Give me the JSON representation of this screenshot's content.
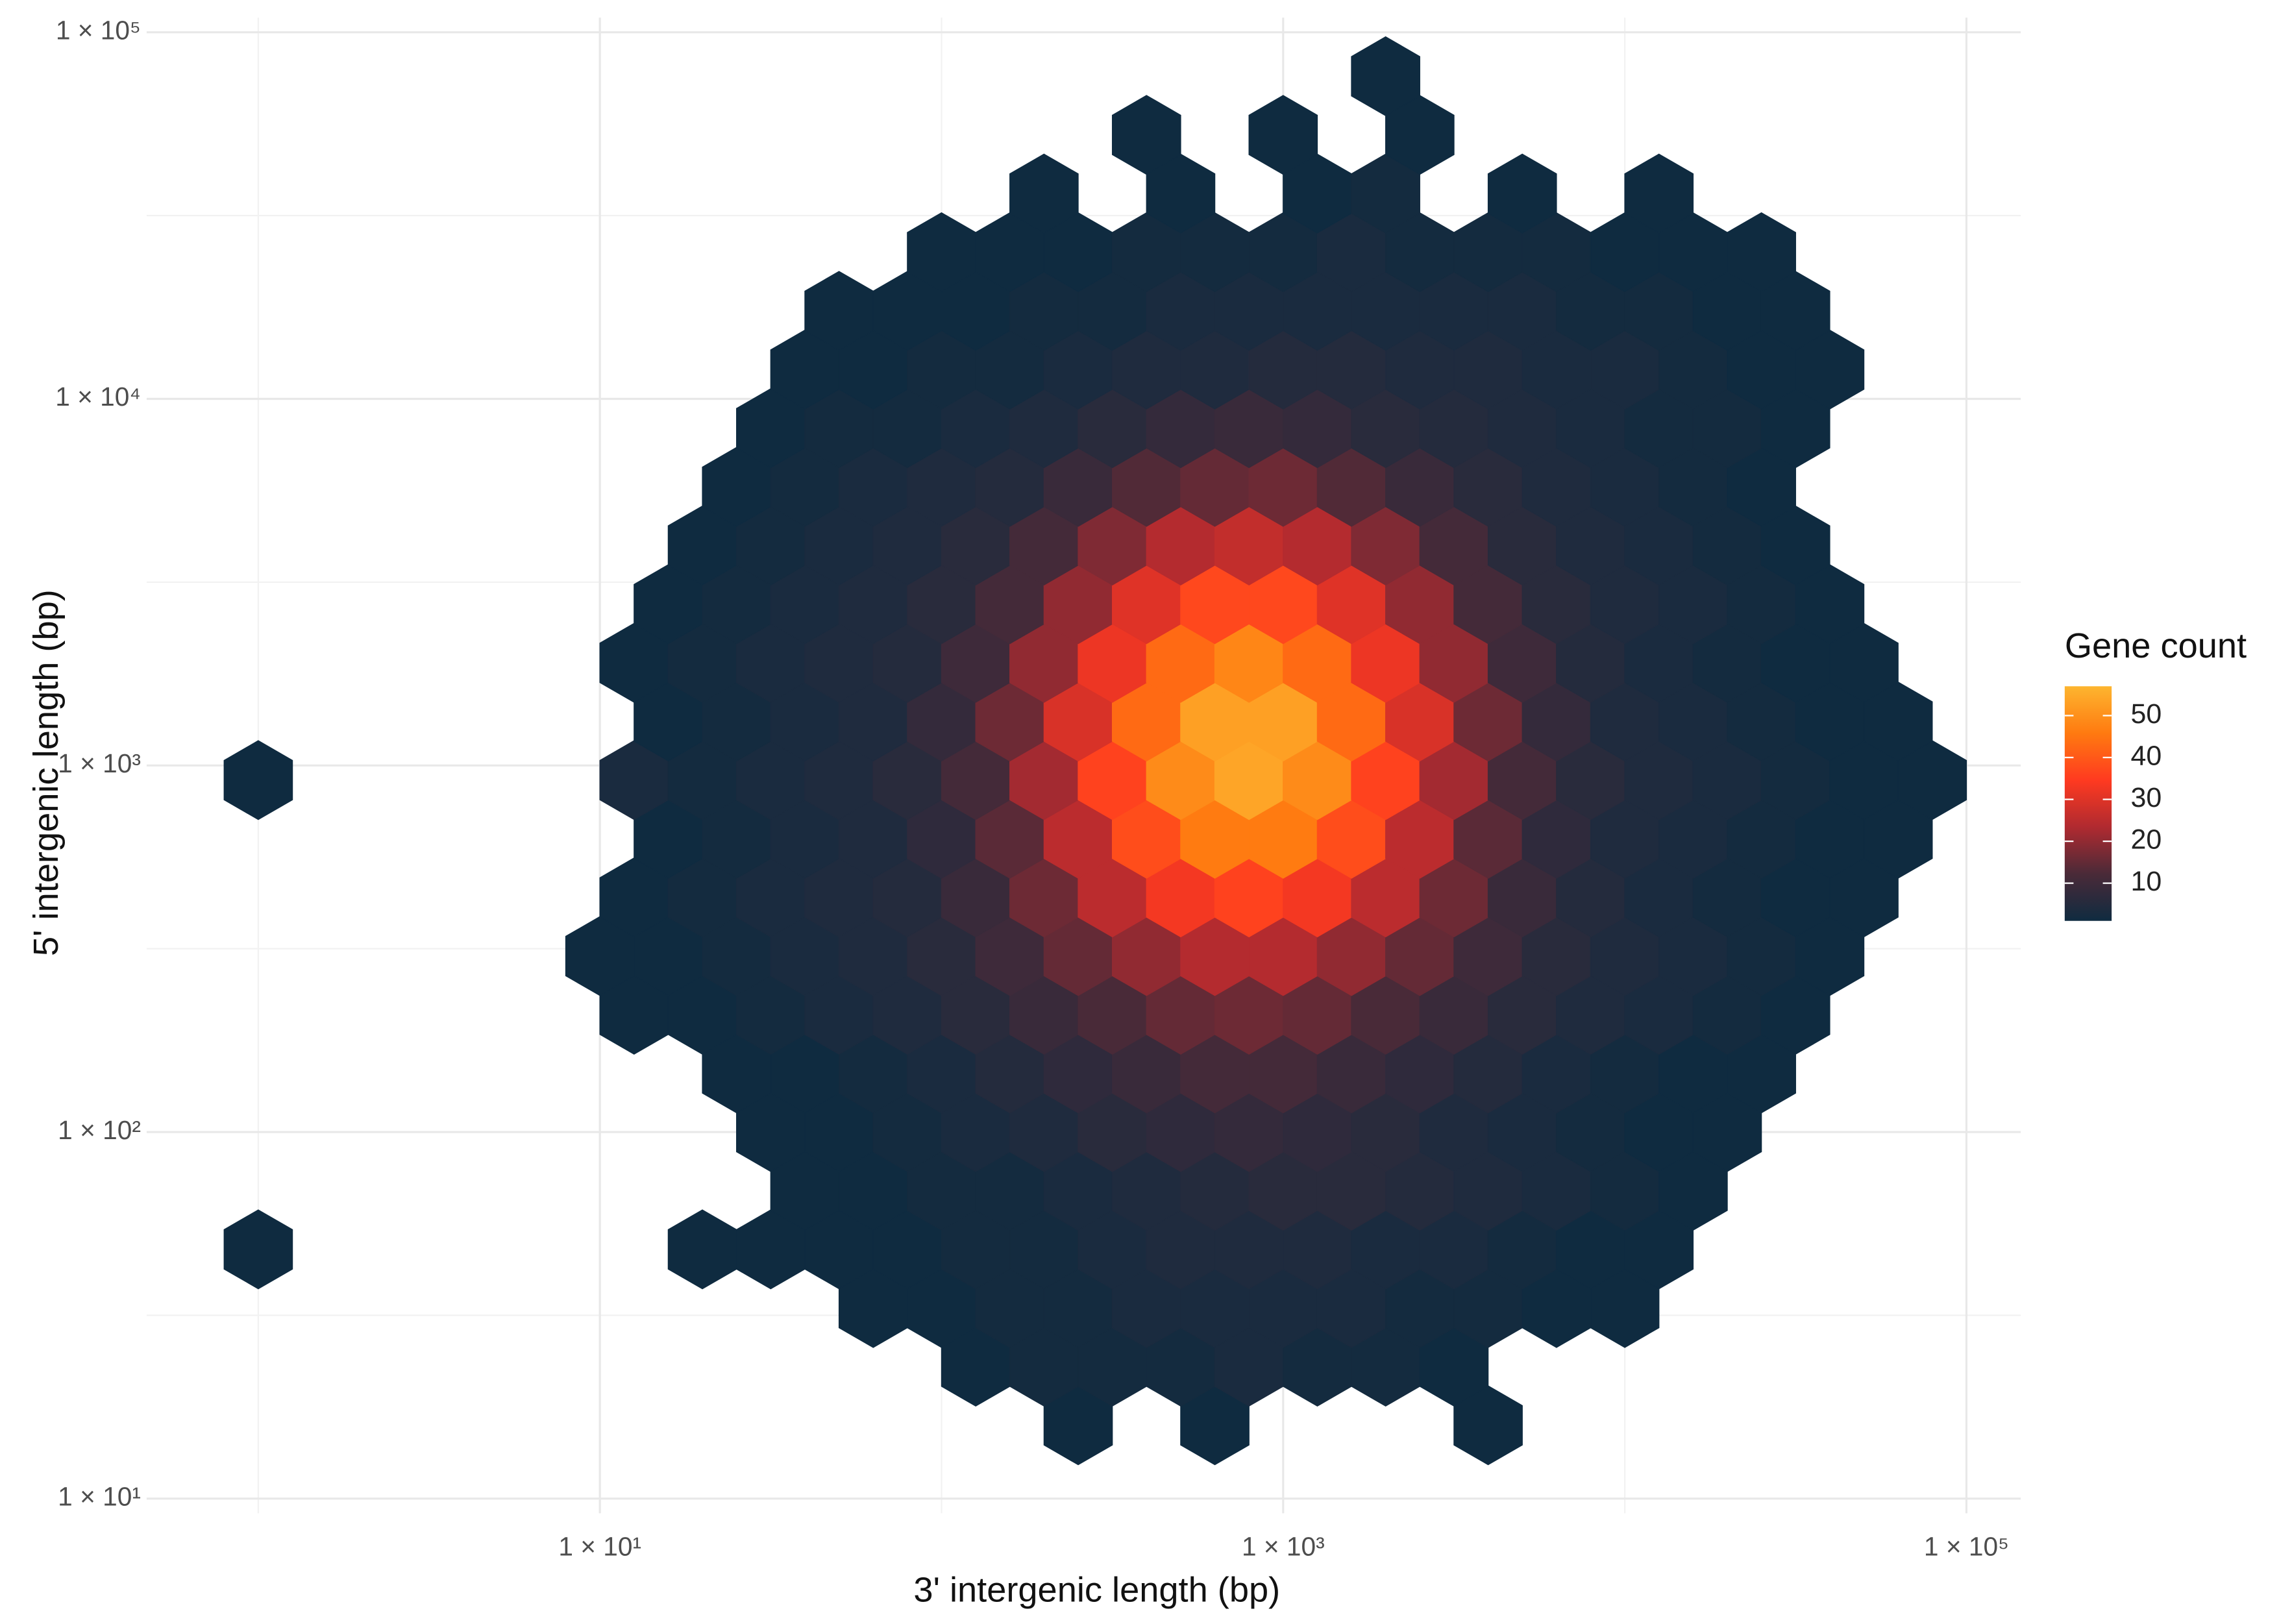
{
  "chart_data": {
    "type": "hexbin",
    "x_label": "3'  intergenic length (bp)",
    "y_label": "5' intergenic length (bp)",
    "log_x": true,
    "log_y": true,
    "grid": true,
    "xlim": [
      0.5,
      150000
    ],
    "ylim": [
      10,
      100000
    ],
    "xticks": [
      {
        "value": 10,
        "label": "1 × 10¹"
      },
      {
        "value": 1000,
        "label": "1 × 10³"
      },
      {
        "value": 100000,
        "label": "1 × 10⁵"
      }
    ],
    "yticks": [
      {
        "value": 10,
        "label": "1 × 10¹"
      },
      {
        "value": 100,
        "label": "1 × 10²"
      },
      {
        "value": 1000,
        "label": "1 × 10³"
      },
      {
        "value": 10000,
        "label": "1 × 10⁴"
      },
      {
        "value": 100000,
        "label": "1 × 10⁵"
      }
    ],
    "colorbar": {
      "title": "Gene count",
      "lim": [
        1,
        57
      ],
      "ticks": [
        10,
        20,
        30,
        40,
        50
      ],
      "colors": [
        "#0f2b40",
        "#4a2a38",
        "#b02a30",
        "#ff3a20",
        "#ff7a10",
        "#fdb52f"
      ]
    },
    "rows": [
      {
        "y": 15.85,
        "x": [
          251.2,
          631,
          3981
        ],
        "values": [
          1,
          1,
          1
        ]
      },
      {
        "y": 22.91,
        "x": [
          125.9,
          199.5,
          316.2,
          501.2,
          794.3,
          1259,
          1995,
          3162
        ],
        "values": [
          1,
          2,
          2,
          2,
          3,
          2,
          2,
          1
        ]
      },
      {
        "y": 33.11,
        "x": [
          63.1,
          100,
          158.5,
          251.2,
          398.1,
          631,
          1000,
          1585,
          2512,
          3981,
          6310,
          10000
        ],
        "values": [
          1,
          1,
          2,
          2,
          3,
          3,
          3,
          3,
          2,
          2,
          1,
          1
        ]
      },
      {
        "y": 47.86,
        "x": [
          1,
          19.95,
          31.62,
          50.12,
          79.43,
          125.9,
          199.5,
          316.2,
          501.2,
          794.3,
          1259,
          1995,
          3162,
          5012,
          7943,
          12590
        ],
        "values": [
          1,
          1,
          1,
          1,
          1,
          2,
          2,
          3,
          4,
          4,
          4,
          3,
          3,
          2,
          1,
          1
        ]
      },
      {
        "y": 69.18,
        "x": [
          39.81,
          63.1,
          100,
          158.5,
          251.2,
          398.1,
          631,
          1000,
          1585,
          2512,
          3981,
          6310,
          10000,
          15850
        ],
        "values": [
          1,
          1,
          2,
          2,
          3,
          4,
          5,
          6,
          6,
          5,
          4,
          3,
          2,
          1
        ]
      },
      {
        "y": 100,
        "x": [
          31.62,
          50.12,
          79.43,
          125.9,
          199.5,
          316.2,
          501.2,
          794.3,
          1259,
          1995,
          3162,
          5012,
          7943,
          12590,
          19950
        ],
        "values": [
          1,
          1,
          2,
          3,
          4,
          6,
          7,
          8,
          7,
          6,
          4,
          3,
          2,
          1,
          1
        ]
      },
      {
        "y": 144.5,
        "x": [
          25.12,
          39.81,
          63.1,
          100,
          158.5,
          251.2,
          398.1,
          631,
          1000,
          1585,
          2512,
          3981,
          6310,
          10000,
          15850,
          25120
        ],
        "values": [
          1,
          1,
          2,
          3,
          5,
          7,
          9,
          11,
          11,
          9,
          7,
          5,
          3,
          2,
          1,
          1
        ]
      },
      {
        "y": 208.9,
        "x": [
          12.59,
          19.95,
          31.62,
          50.12,
          79.43,
          125.9,
          199.5,
          316.2,
          501.2,
          794.3,
          1259,
          1995,
          3162,
          5012,
          7943,
          12590,
          19950,
          31620
        ],
        "values": [
          1,
          1,
          2,
          3,
          4,
          6,
          9,
          12,
          15,
          16,
          15,
          12,
          9,
          6,
          4,
          3,
          2,
          1
        ]
      },
      {
        "y": 302,
        "x": [
          10,
          15.85,
          25.12,
          39.81,
          63.1,
          100,
          158.5,
          251.2,
          398.1,
          631,
          1000,
          1585,
          2512,
          3981,
          6310,
          10000,
          15850,
          25120,
          39810
        ],
        "values": [
          1,
          1,
          2,
          3,
          4,
          6,
          10,
          15,
          20,
          24,
          24,
          20,
          15,
          10,
          6,
          4,
          3,
          2,
          1
        ]
      },
      {
        "y": 436.5,
        "x": [
          12.59,
          19.95,
          31.62,
          50.12,
          79.43,
          125.9,
          199.5,
          316.2,
          501.2,
          794.3,
          1259,
          1995,
          3162,
          5012,
          7943,
          12590,
          19950,
          31620,
          50120
        ],
        "values": [
          1,
          2,
          3,
          4,
          5,
          9,
          16,
          25,
          33,
          36,
          33,
          25,
          16,
          9,
          5,
          3,
          2,
          1,
          1
        ]
      },
      {
        "y": 631,
        "x": [
          15.85,
          25.12,
          39.81,
          63.1,
          100,
          158.5,
          251.2,
          398.1,
          631,
          1000,
          1585,
          2512,
          3981,
          6310,
          10000,
          15850,
          25120,
          39810,
          63100
        ],
        "values": [
          1,
          2,
          3,
          4,
          7,
          14,
          25,
          38,
          46,
          46,
          38,
          25,
          14,
          7,
          4,
          3,
          2,
          1,
          1
        ]
      },
      {
        "y": 912,
        "x": [
          1,
          12.59,
          19.95,
          31.62,
          50.12,
          79.43,
          125.9,
          199.5,
          316.2,
          501.2,
          794.3,
          1259,
          1995,
          3162,
          5012,
          7943,
          12590,
          19950,
          31620,
          50120,
          79430
        ],
        "values": [
          1,
          3,
          2,
          3,
          4,
          6,
          11,
          22,
          36,
          49,
          54,
          49,
          36,
          22,
          11,
          6,
          4,
          3,
          2,
          1,
          1
        ]
      },
      {
        "y": 1318,
        "x": [
          15.85,
          25.12,
          39.81,
          63.1,
          100,
          158.5,
          251.2,
          398.1,
          631,
          1000,
          1585,
          2512,
          3981,
          6310,
          10000,
          15850,
          25120,
          39810,
          63100
        ],
        "values": [
          1,
          2,
          3,
          4,
          8,
          16,
          29,
          43,
          53,
          53,
          43,
          29,
          16,
          8,
          4,
          3,
          2,
          1,
          1
        ]
      },
      {
        "y": 1905,
        "x": [
          12.59,
          19.95,
          31.62,
          50.12,
          79.43,
          125.9,
          199.5,
          316.2,
          501.2,
          794.3,
          1259,
          1995,
          3162,
          5012,
          7943,
          12590,
          19950,
          31620,
          50120
        ],
        "values": [
          1,
          2,
          3,
          4,
          5,
          10,
          20,
          32,
          43,
          48,
          43,
          32,
          20,
          10,
          5,
          3,
          2,
          1,
          1
        ]
      },
      {
        "y": 2754,
        "x": [
          15.85,
          25.12,
          39.81,
          63.1,
          100,
          158.5,
          251.2,
          398.1,
          631,
          1000,
          1585,
          2512,
          3981,
          6310,
          10000,
          15850,
          25120,
          39810
        ],
        "values": [
          1,
          2,
          3,
          4,
          6,
          11,
          20,
          30,
          37,
          37,
          30,
          20,
          11,
          6,
          4,
          3,
          2,
          1
        ]
      },
      {
        "y": 3981,
        "x": [
          19.95,
          31.62,
          50.12,
          79.43,
          125.9,
          199.5,
          316.2,
          501.2,
          794.3,
          1259,
          1995,
          3162,
          5012,
          7943,
          12590,
          19950,
          31620
        ],
        "values": [
          1,
          2,
          3,
          4,
          6,
          11,
          18,
          24,
          26,
          24,
          18,
          11,
          6,
          4,
          3,
          2,
          1
        ]
      },
      {
        "y": 5754,
        "x": [
          25.12,
          39.81,
          63.1,
          100,
          158.5,
          251.2,
          398.1,
          631,
          1000,
          1585,
          2512,
          3981,
          6310,
          10000,
          15850,
          25120
        ],
        "values": [
          1,
          2,
          3,
          4,
          5,
          9,
          13,
          15,
          16,
          13,
          9,
          6,
          4,
          3,
          2,
          1
        ]
      },
      {
        "y": 8318,
        "x": [
          31.62,
          50.12,
          79.43,
          125.9,
          199.5,
          316.2,
          501.2,
          794.3,
          1259,
          1995,
          3162,
          5012,
          7943,
          12590,
          19950,
          31620
        ],
        "values": [
          1,
          2,
          2,
          3,
          4,
          6,
          8,
          9,
          8,
          6,
          5,
          4,
          3,
          2,
          2,
          1
        ]
      },
      {
        "y": 12020,
        "x": [
          39.81,
          63.1,
          100,
          158.5,
          251.2,
          398.1,
          631,
          1000,
          1585,
          2512,
          3981,
          6310,
          10000,
          15850,
          25120,
          39810
        ],
        "values": [
          1,
          1,
          2,
          2,
          3,
          4,
          4,
          5,
          5,
          4,
          4,
          3,
          3,
          2,
          1,
          1
        ]
      },
      {
        "y": 17380,
        "x": [
          50.12,
          79.43,
          125.9,
          199.5,
          316.2,
          501.2,
          794.3,
          1259,
          1995,
          3162,
          5012,
          7943,
          12590,
          19950,
          31620
        ],
        "values": [
          1,
          1,
          1,
          2,
          2,
          3,
          3,
          3,
          3,
          3,
          3,
          2,
          2,
          1,
          1
        ]
      },
      {
        "y": 25120,
        "x": [
          100,
          158.5,
          251.2,
          398.1,
          631,
          1000,
          1585,
          2512,
          3981,
          6310,
          10000,
          15850,
          25120
        ],
        "values": [
          1,
          1,
          1,
          2,
          2,
          2,
          3,
          2,
          2,
          2,
          1,
          1,
          1
        ]
      },
      {
        "y": 36310,
        "x": [
          199.5,
          501.2,
          1259,
          1995,
          5012,
          12590
        ],
        "values": [
          1,
          1,
          1,
          2,
          1,
          1
        ]
      },
      {
        "y": 52480,
        "x": [
          398.1,
          1000,
          2512
        ],
        "values": [
          1,
          1,
          1
        ]
      },
      {
        "y": 75860,
        "x": [
          1995
        ],
        "values": [
          1
        ]
      }
    ]
  }
}
